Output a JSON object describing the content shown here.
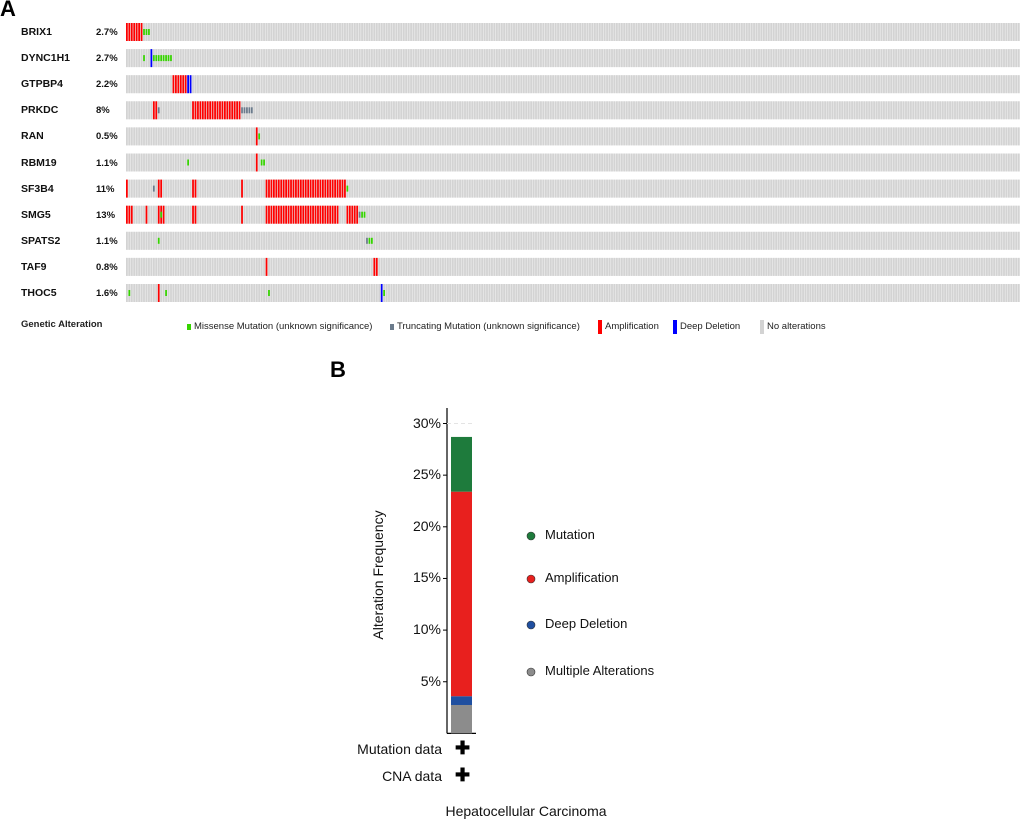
{
  "panel_a": {
    "letter": "A",
    "legend_title": "Genetic Alteration",
    "legend": [
      {
        "key": "missense",
        "label": "Missense Mutation (unknown significance)",
        "color": "#36d400"
      },
      {
        "key": "truncating",
        "label": "Truncating Mutation (unknown significance)",
        "color": "#6b7b8c"
      },
      {
        "key": "amp",
        "label": "Amplification",
        "color": "#ff0000"
      },
      {
        "key": "deep",
        "label": "Deep Deletion",
        "color": "#0000ff"
      },
      {
        "key": "none",
        "label": "No alterations",
        "color": "#d3d3d3"
      }
    ]
  },
  "chart_data": [
    {
      "type": "heatmap",
      "genes": [
        {
          "name": "BRIX1",
          "pct": "2.7%",
          "alterations": [
            {
              "type": "amp",
              "samples": [
                0,
                6
              ]
            },
            {
              "type": "missense",
              "samples": [
                7,
                9
              ]
            }
          ]
        },
        {
          "name": "DYNC1H1",
          "pct": "2.7%",
          "alterations": [
            {
              "type": "missense",
              "samples": [
                7,
                7
              ]
            },
            {
              "type": "deep",
              "samples": [
                10,
                10
              ]
            },
            {
              "type": "missense",
              "samples": [
                11,
                18
              ]
            }
          ]
        },
        {
          "name": "GTPBP4",
          "pct": "2.2%",
          "alterations": [
            {
              "type": "amp",
              "samples": [
                19,
                24
              ]
            },
            {
              "type": "deep",
              "samples": [
                25,
                26
              ]
            }
          ]
        },
        {
          "name": "PRKDC",
          "pct": "8%",
          "alterations": [
            {
              "type": "amp",
              "samples": [
                11,
                12
              ]
            },
            {
              "type": "truncating",
              "samples": [
                13,
                13
              ]
            },
            {
              "type": "amp",
              "samples": [
                27,
                46
              ]
            },
            {
              "type": "truncating",
              "samples": [
                47,
                51
              ]
            }
          ]
        },
        {
          "name": "RAN",
          "pct": "0.5%",
          "alterations": [
            {
              "type": "amp",
              "samples": [
                53,
                53
              ]
            },
            {
              "type": "missense",
              "samples": [
                54,
                54
              ]
            }
          ]
        },
        {
          "name": "RBM19",
          "pct": "1.1%",
          "alterations": [
            {
              "type": "missense",
              "samples": [
                25,
                25
              ]
            },
            {
              "type": "amp",
              "samples": [
                53,
                53
              ]
            },
            {
              "type": "missense",
              "samples": [
                55,
                56
              ]
            }
          ]
        },
        {
          "name": "SF3B4",
          "pct": "11%",
          "alterations": [
            {
              "type": "amp",
              "samples": [
                0,
                0
              ]
            },
            {
              "type": "truncating",
              "samples": [
                11,
                11
              ]
            },
            {
              "type": "amp",
              "samples": [
                13,
                14
              ]
            },
            {
              "type": "amp",
              "samples": [
                27,
                28
              ]
            },
            {
              "type": "amp",
              "samples": [
                47,
                47
              ]
            },
            {
              "type": "amp",
              "samples": [
                57,
                89
              ]
            },
            {
              "type": "missense",
              "samples": [
                90,
                90
              ]
            }
          ]
        },
        {
          "name": "SMG5",
          "pct": "13%",
          "alterations": [
            {
              "type": "amp",
              "samples": [
                0,
                2
              ]
            },
            {
              "type": "amp",
              "samples": [
                8,
                8
              ]
            },
            {
              "type": "amp",
              "samples": [
                13,
                15
              ]
            },
            {
              "type": "missense",
              "samples": [
                14,
                14
              ]
            },
            {
              "type": "amp",
              "samples": [
                27,
                28
              ]
            },
            {
              "type": "amp",
              "samples": [
                47,
                47
              ]
            },
            {
              "type": "amp",
              "samples": [
                57,
                86
              ]
            },
            {
              "type": "amp",
              "samples": [
                90,
                94
              ]
            },
            {
              "type": "truncating",
              "samples": [
                95,
                95
              ]
            },
            {
              "type": "missense",
              "samples": [
                96,
                97
              ]
            }
          ]
        },
        {
          "name": "SPATS2",
          "pct": "1.1%",
          "alterations": [
            {
              "type": "missense",
              "samples": [
                13,
                13
              ]
            },
            {
              "type": "truncating",
              "samples": [
                98,
                98
              ]
            },
            {
              "type": "missense",
              "samples": [
                99,
                100
              ]
            }
          ]
        },
        {
          "name": "TAF9",
          "pct": "0.8%",
          "alterations": [
            {
              "type": "amp",
              "samples": [
                57,
                57
              ]
            },
            {
              "type": "amp",
              "samples": [
                101,
                102
              ]
            }
          ]
        },
        {
          "name": "THOC5",
          "pct": "1.6%",
          "alterations": [
            {
              "type": "missense",
              "samples": [
                1,
                1
              ]
            },
            {
              "type": "amp",
              "samples": [
                13,
                13
              ]
            },
            {
              "type": "missense",
              "samples": [
                16,
                16
              ]
            },
            {
              "type": "missense",
              "samples": [
                58,
                58
              ]
            },
            {
              "type": "deep",
              "samples": [
                104,
                104
              ]
            },
            {
              "type": "missense",
              "samples": [
                105,
                105
              ]
            }
          ]
        }
      ]
    },
    {
      "type": "bar",
      "letter": "B",
      "ylabel": "Alteration Frequency",
      "xlabel": "Hepatocellular Carcinoma",
      "ylim": [
        0,
        30
      ],
      "yticks": [
        "5%",
        "10%",
        "15%",
        "20%",
        "25%",
        "30%"
      ],
      "ytick_values": [
        5,
        10,
        15,
        20,
        25,
        30
      ],
      "stack": [
        {
          "name": "Multiple Alterations",
          "value": 2.75,
          "color": "#8c8c8c"
        },
        {
          "name": "Deep Deletion",
          "value": 0.85,
          "color": "#1f4fa0"
        },
        {
          "name": "Amplification",
          "value": 19.8,
          "color": "#e8201e"
        },
        {
          "name": "Mutation",
          "value": 5.3,
          "color": "#1e7b3c"
        }
      ],
      "legend": [
        {
          "name": "Mutation",
          "color": "#1e7b3c"
        },
        {
          "name": "Amplification",
          "color": "#e8201e"
        },
        {
          "name": "Deep Deletion",
          "color": "#1f4fa0"
        },
        {
          "name": "Multiple Alterations",
          "color": "#8c8c8c"
        }
      ],
      "annotations": [
        {
          "label": "Mutation data",
          "mark": "✚"
        },
        {
          "label": "CNA data",
          "mark": "✚"
        }
      ]
    }
  ]
}
